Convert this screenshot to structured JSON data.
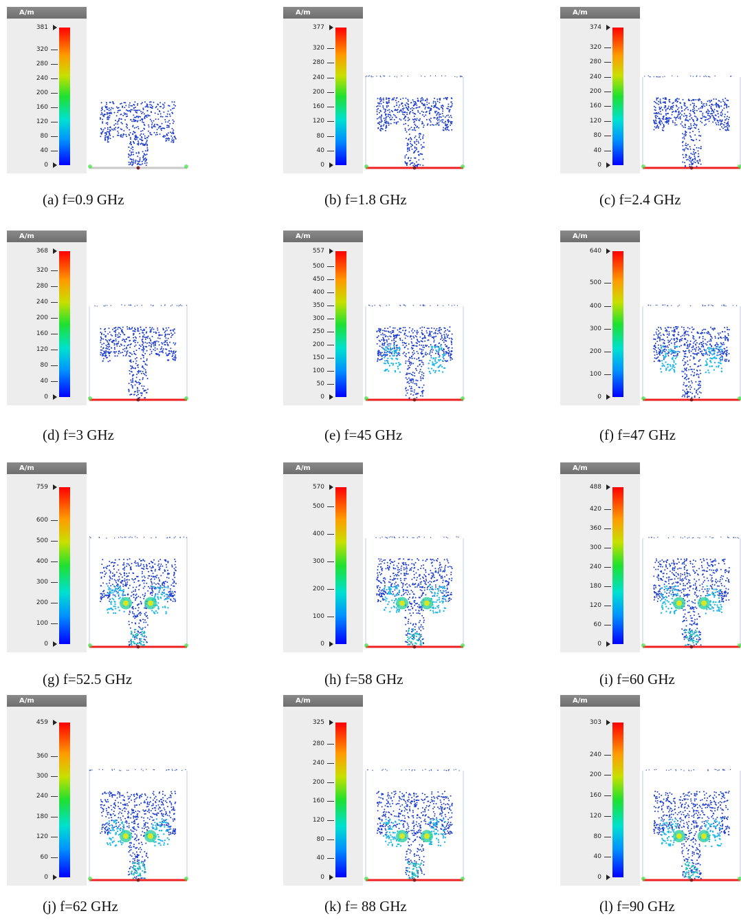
{
  "unit": "A/m",
  "panels": [
    {
      "label": "(a) f=0.9 GHz",
      "max": "381",
      "ticks": [
        "320",
        "280",
        "240",
        "200",
        "160",
        "120",
        "80",
        "40",
        "0"
      ],
      "pattern": "a"
    },
    {
      "label": "(b) f=1.8 GHz",
      "max": "377",
      "ticks": [
        "320",
        "280",
        "240",
        "200",
        "160",
        "120",
        "80",
        "40",
        "0"
      ],
      "pattern": "b"
    },
    {
      "label": "(c) f=2.4 GHz",
      "max": "374",
      "ticks": [
        "320",
        "280",
        "240",
        "200",
        "160",
        "120",
        "80",
        "40",
        "0"
      ],
      "pattern": "b"
    },
    {
      "label": "(d) f=3 GHz",
      "max": "368",
      "ticks": [
        "320",
        "280",
        "240",
        "200",
        "160",
        "120",
        "80",
        "40",
        "0"
      ],
      "pattern": "b"
    },
    {
      "label": "(e) f=45 GHz",
      "max": "557",
      "ticks": [
        "500",
        "450",
        "400",
        "350",
        "300",
        "250",
        "200",
        "150",
        "100",
        "50",
        "0"
      ],
      "pattern": "e"
    },
    {
      "label": "(f) f=47 GHz",
      "max": "640",
      "ticks": [
        "500",
        "400",
        "300",
        "200",
        "100",
        "0"
      ],
      "pattern": "e"
    },
    {
      "label": "(g) f=52.5 GHz",
      "max": "759",
      "ticks": [
        "600",
        "500",
        "400",
        "300",
        "200",
        "100",
        "0"
      ],
      "pattern": "g"
    },
    {
      "label": "(h) f=58 GHz",
      "max": "570",
      "ticks": [
        "500",
        "400",
        "300",
        "200",
        "100",
        "0"
      ],
      "pattern": "g"
    },
    {
      "label": "(i) f=60 GHz",
      "max": "488",
      "ticks": [
        "420",
        "360",
        "300",
        "240",
        "180",
        "120",
        "60",
        "0"
      ],
      "pattern": "g"
    },
    {
      "label": "(j) f=62 GHz",
      "max": "459",
      "ticks": [
        "360",
        "300",
        "240",
        "180",
        "120",
        "60",
        "0"
      ],
      "pattern": "g"
    },
    {
      "label": "(k) f= 88 GHz",
      "max": "325",
      "ticks": [
        "280",
        "240",
        "200",
        "160",
        "120",
        "80",
        "40",
        "0"
      ],
      "pattern": "g"
    },
    {
      "label": "(l) f=90 GHz",
      "max": "303",
      "ticks": [
        "240",
        "200",
        "160",
        "120",
        "80",
        "40",
        "0"
      ],
      "pattern": "g"
    }
  ]
}
